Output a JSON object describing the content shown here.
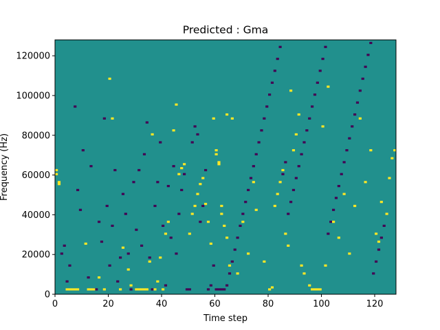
{
  "chart_data": {
    "type": "heatmap",
    "title": "Predicted : Gma",
    "xlabel": "Time step",
    "ylabel": "Frequency (Hz)",
    "xlim": [
      0,
      128
    ],
    "ylim": [
      0,
      128000
    ],
    "x_ticks": [
      0,
      20,
      40,
      60,
      80,
      100,
      120
    ],
    "y_ticks": [
      0,
      20000,
      40000,
      60000,
      80000,
      100000,
      120000
    ],
    "x_tick_labels": [
      "0",
      "20",
      "40",
      "60",
      "80",
      "100",
      "120"
    ],
    "y_tick_labels": [
      "0",
      "20000",
      "40000",
      "60000",
      "80000",
      "100000",
      "120000"
    ],
    "n_time_steps": 128,
    "n_freq_bins": 128,
    "value_levels": [
      0,
      1,
      2
    ],
    "colormap": {
      "0": "#440154",
      "1": "#21908d",
      "2": "#fde725"
    },
    "background_level": 1,
    "bright_cells": [
      [
        0,
        60
      ],
      [
        0,
        62
      ],
      [
        1,
        55
      ],
      [
        1,
        56
      ],
      [
        4,
        2
      ],
      [
        5,
        2
      ],
      [
        6,
        2
      ],
      [
        7,
        2
      ],
      [
        8,
        2
      ],
      [
        11,
        25
      ],
      [
        12,
        2
      ],
      [
        13,
        2
      ],
      [
        14,
        2
      ],
      [
        16,
        8
      ],
      [
        18,
        2
      ],
      [
        20,
        108
      ],
      [
        21,
        88
      ],
      [
        24,
        2
      ],
      [
        25,
        23
      ],
      [
        27,
        12
      ],
      [
        28,
        4
      ],
      [
        30,
        2
      ],
      [
        31,
        2
      ],
      [
        32,
        2
      ],
      [
        33,
        2
      ],
      [
        34,
        2
      ],
      [
        35,
        16
      ],
      [
        36,
        80
      ],
      [
        37,
        2
      ],
      [
        38,
        6
      ],
      [
        39,
        18
      ],
      [
        40,
        2
      ],
      [
        41,
        30
      ],
      [
        42,
        36
      ],
      [
        44,
        82
      ],
      [
        45,
        95
      ],
      [
        46,
        60
      ],
      [
        47,
        63
      ],
      [
        48,
        65
      ],
      [
        50,
        30
      ],
      [
        51,
        40
      ],
      [
        52,
        44
      ],
      [
        53,
        50
      ],
      [
        54,
        55
      ],
      [
        55,
        58
      ],
      [
        56,
        45
      ],
      [
        57,
        36
      ],
      [
        58,
        25
      ],
      [
        59,
        88
      ],
      [
        60,
        70
      ],
      [
        60,
        72
      ],
      [
        61,
        65
      ],
      [
        61,
        66
      ],
      [
        62,
        40
      ],
      [
        62,
        44
      ],
      [
        63,
        34
      ],
      [
        64,
        28
      ],
      [
        64,
        90
      ],
      [
        65,
        14
      ],
      [
        66,
        88
      ],
      [
        68,
        10
      ],
      [
        70,
        36
      ],
      [
        72,
        20
      ],
      [
        74,
        56
      ],
      [
        75,
        42
      ],
      [
        78,
        16
      ],
      [
        80,
        2
      ],
      [
        81,
        3
      ],
      [
        82,
        44
      ],
      [
        83,
        50
      ],
      [
        84,
        56
      ],
      [
        85,
        62
      ],
      [
        86,
        30
      ],
      [
        87,
        24
      ],
      [
        88,
        102
      ],
      [
        89,
        72
      ],
      [
        90,
        80
      ],
      [
        91,
        90
      ],
      [
        92,
        14
      ],
      [
        93,
        10
      ],
      [
        95,
        4
      ],
      [
        96,
        2
      ],
      [
        97,
        2
      ],
      [
        98,
        2
      ],
      [
        99,
        2
      ],
      [
        100,
        84
      ],
      [
        101,
        14
      ],
      [
        102,
        104
      ],
      [
        104,
        36
      ],
      [
        106,
        28
      ],
      [
        108,
        50
      ],
      [
        110,
        20
      ],
      [
        112,
        44
      ],
      [
        114,
        88
      ],
      [
        116,
        56
      ],
      [
        118,
        72
      ],
      [
        120,
        30
      ],
      [
        121,
        26
      ],
      [
        122,
        46
      ],
      [
        124,
        40
      ],
      [
        125,
        58
      ],
      [
        126,
        68
      ],
      [
        127,
        72
      ]
    ],
    "dark_cells": [
      [
        2,
        20
      ],
      [
        3,
        24
      ],
      [
        4,
        6
      ],
      [
        5,
        14
      ],
      [
        7,
        94
      ],
      [
        8,
        52
      ],
      [
        9,
        42
      ],
      [
        10,
        72
      ],
      [
        12,
        8
      ],
      [
        13,
        64
      ],
      [
        14,
        2
      ],
      [
        15,
        2
      ],
      [
        16,
        36
      ],
      [
        17,
        26
      ],
      [
        18,
        88
      ],
      [
        19,
        44
      ],
      [
        20,
        14
      ],
      [
        21,
        34
      ],
      [
        22,
        62
      ],
      [
        23,
        6
      ],
      [
        24,
        18
      ],
      [
        25,
        50
      ],
      [
        26,
        40
      ],
      [
        27,
        20
      ],
      [
        28,
        2
      ],
      [
        29,
        56
      ],
      [
        30,
        32
      ],
      [
        31,
        62
      ],
      [
        32,
        24
      ],
      [
        33,
        70
      ],
      [
        34,
        86
      ],
      [
        35,
        18
      ],
      [
        36,
        2
      ],
      [
        37,
        44
      ],
      [
        38,
        56
      ],
      [
        39,
        76
      ],
      [
        40,
        34
      ],
      [
        41,
        4
      ],
      [
        42,
        54
      ],
      [
        43,
        28
      ],
      [
        44,
        64
      ],
      [
        45,
        20
      ],
      [
        46,
        40
      ],
      [
        47,
        52
      ],
      [
        48,
        60
      ],
      [
        49,
        2
      ],
      [
        50,
        2
      ],
      [
        51,
        76
      ],
      [
        52,
        84
      ],
      [
        53,
        80
      ],
      [
        54,
        36
      ],
      [
        55,
        44
      ],
      [
        56,
        62
      ],
      [
        57,
        2
      ],
      [
        58,
        4
      ],
      [
        59,
        14
      ],
      [
        60,
        2
      ],
      [
        61,
        2
      ],
      [
        62,
        2
      ],
      [
        63,
        2
      ],
      [
        64,
        4
      ],
      [
        65,
        10
      ],
      [
        66,
        16
      ],
      [
        67,
        22
      ],
      [
        68,
        28
      ],
      [
        69,
        34
      ],
      [
        70,
        40
      ],
      [
        71,
        46
      ],
      [
        72,
        52
      ],
      [
        73,
        58
      ],
      [
        74,
        64
      ],
      [
        75,
        70
      ],
      [
        76,
        76
      ],
      [
        77,
        82
      ],
      [
        78,
        88
      ],
      [
        79,
        94
      ],
      [
        80,
        100
      ],
      [
        81,
        106
      ],
      [
        82,
        112
      ],
      [
        83,
        118
      ],
      [
        84,
        124
      ],
      [
        85,
        60
      ],
      [
        86,
        66
      ],
      [
        87,
        40
      ],
      [
        88,
        46
      ],
      [
        89,
        52
      ],
      [
        90,
        58
      ],
      [
        91,
        64
      ],
      [
        92,
        70
      ],
      [
        93,
        76
      ],
      [
        94,
        82
      ],
      [
        95,
        88
      ],
      [
        96,
        94
      ],
      [
        97,
        100
      ],
      [
        98,
        106
      ],
      [
        99,
        112
      ],
      [
        100,
        118
      ],
      [
        101,
        124
      ],
      [
        102,
        30
      ],
      [
        103,
        36
      ],
      [
        104,
        42
      ],
      [
        105,
        48
      ],
      [
        106,
        54
      ],
      [
        107,
        60
      ],
      [
        108,
        66
      ],
      [
        109,
        72
      ],
      [
        110,
        78
      ],
      [
        111,
        84
      ],
      [
        112,
        90
      ],
      [
        113,
        96
      ],
      [
        114,
        102
      ],
      [
        115,
        108
      ],
      [
        116,
        114
      ],
      [
        117,
        120
      ],
      [
        118,
        126
      ],
      [
        119,
        10
      ],
      [
        120,
        16
      ],
      [
        121,
        22
      ],
      [
        122,
        28
      ],
      [
        123,
        34
      ]
    ]
  }
}
